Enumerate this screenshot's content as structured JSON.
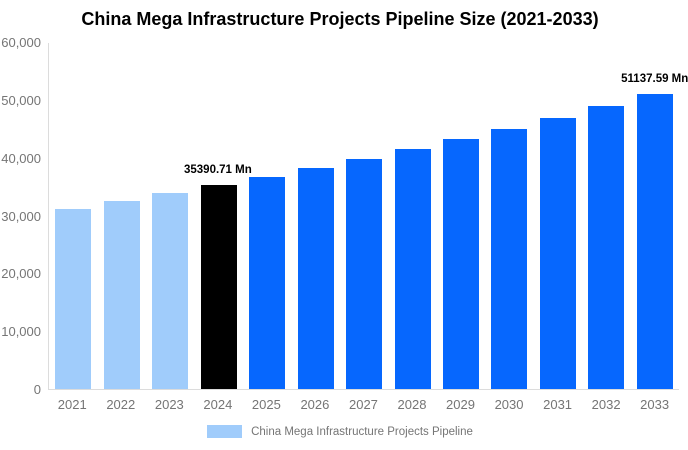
{
  "chart_data": {
    "type": "bar",
    "title": "China Mega Infrastructure Projects Pipeline Size (2021-2033)",
    "unit": "Mn",
    "categories": [
      "2021",
      "2022",
      "2023",
      "2024",
      "2025",
      "2026",
      "2027",
      "2028",
      "2029",
      "2030",
      "2031",
      "2032",
      "2033"
    ],
    "series": [
      {
        "name": "China Mega Infrastructure Projects Pipeline",
        "values": [
          31200,
          32600,
          33950,
          35390.71,
          36740,
          38300,
          39890,
          41640,
          43270,
          45150,
          46950,
          49050,
          51137.59
        ]
      }
    ],
    "category_roles": [
      "past",
      "past",
      "past",
      "current",
      "forecast",
      "forecast",
      "forecast",
      "forecast",
      "forecast",
      "forecast",
      "forecast",
      "forecast",
      "forecast"
    ],
    "data_labels": [
      {
        "category": "2024",
        "text": "35390.71 Mn"
      },
      {
        "category": "2033",
        "text": "51137.59 Mn"
      }
    ],
    "y_ticks": [
      "0",
      "10,000",
      "20,000",
      "30,000",
      "40,000",
      "50,000",
      "60,000"
    ],
    "ylim": [
      0,
      60000
    ],
    "xlabel": "",
    "ylabel": "",
    "grid": false,
    "legend_position": "bottom",
    "colors": {
      "past": "#A0CCFB",
      "current": "#000000",
      "forecast": "#0667FE"
    }
  },
  "styles": {
    "background": "#FFFFFF",
    "axis_text_color": "#757575",
    "axis_line_color": "#DCDCDC",
    "title_color": "#000000",
    "value_label_color": "#000000"
  }
}
